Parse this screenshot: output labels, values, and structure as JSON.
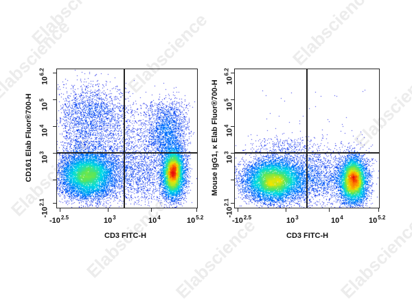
{
  "watermark": {
    "text": "Elabscience",
    "mark": "®"
  },
  "chart_data": [
    {
      "type": "scatter",
      "subtype": "flow-cytometry-density-dot-plot",
      "title": "",
      "xlabel": "CD3 FITC-H",
      "ylabel": "CD161 Elab Fluor®700-H",
      "x_ticks": [
        {
          "base": "-10",
          "exp": "2.5"
        },
        {
          "base": "10",
          "exp": "3"
        },
        {
          "base": "10",
          "exp": "4"
        },
        {
          "base": "10",
          "exp": "5.2"
        }
      ],
      "y_ticks": [
        {
          "base": "-10",
          "exp": "2.1"
        },
        {
          "base": "10",
          "exp": "3"
        },
        {
          "base": "10",
          "exp": "4"
        },
        {
          "base": "10",
          "exp": "5"
        },
        {
          "base": "10",
          "exp": "6.2"
        }
      ],
      "xlim": [
        "-10^2.5",
        "10^5.2"
      ],
      "ylim": [
        "-10^2.1",
        "10^6.2"
      ],
      "grid": false,
      "quadrant_gate": {
        "x": "~10^3.3",
        "y": "~10^3"
      },
      "populations": [
        {
          "name": "CD3- CD161-",
          "quadrant": "lower-left",
          "center": [
            "~10^2.7",
            "~10^2.4"
          ],
          "density": "high",
          "peak_color": "yellow-green"
        },
        {
          "name": "CD3+ CD161-",
          "quadrant": "lower-right",
          "center": [
            "~10^4.4",
            "~10^2.4"
          ],
          "density": "highest",
          "peak_color": "red"
        },
        {
          "name": "CD3+ CD161+",
          "quadrant": "upper-right",
          "center": [
            "~10^4.3",
            "~10^3.8"
          ],
          "density": "medium",
          "peak_color": "cyan"
        },
        {
          "name": "CD3- CD161+",
          "quadrant": "upper-left",
          "center": [
            "~10^2.7",
            "~10^3.8"
          ],
          "density": "low-medium",
          "peak_color": "blue"
        }
      ]
    },
    {
      "type": "scatter",
      "subtype": "flow-cytometry-density-dot-plot",
      "title": "",
      "xlabel": "CD3 FITC-H",
      "ylabel": "Mouse IgG1, κ Elab Fluor®700-H",
      "x_ticks": [
        {
          "base": "-10",
          "exp": "2.5"
        },
        {
          "base": "10",
          "exp": "3"
        },
        {
          "base": "10",
          "exp": "4"
        },
        {
          "base": "10",
          "exp": "5.2"
        }
      ],
      "y_ticks": [
        {
          "base": "-10",
          "exp": "2.1"
        },
        {
          "base": "10",
          "exp": "3"
        },
        {
          "base": "10",
          "exp": "4"
        },
        {
          "base": "10",
          "exp": "5"
        },
        {
          "base": "10",
          "exp": "6.2"
        }
      ],
      "xlim": [
        "-10^2.5",
        "10^5.2"
      ],
      "ylim": [
        "-10^2.1",
        "10^6.2"
      ],
      "grid": false,
      "quadrant_gate": {
        "x": "~10^3.3",
        "y": "~10^3"
      },
      "populations": [
        {
          "name": "CD3- isotype",
          "quadrant": "lower-left",
          "center": [
            "~10^2.7",
            "~10^2.4"
          ],
          "density": "high",
          "peak_color": "yellow-green"
        },
        {
          "name": "CD3+ isotype",
          "quadrant": "lower-right",
          "center": [
            "~10^4.4",
            "~10^2.4"
          ],
          "density": "highest",
          "peak_color": "red"
        },
        {
          "name": "background events",
          "quadrant": "upper",
          "density": "sparse",
          "peak_color": "blue"
        }
      ]
    }
  ],
  "plots": [
    {
      "ylabel": "CD161 Elab Fluor®700-H",
      "xlabel": "CD3 FITC-H",
      "xt": [
        [
          "-10",
          "2.5"
        ],
        [
          "10",
          "3"
        ],
        [
          "10",
          "4"
        ],
        [
          "10",
          "5.2"
        ]
      ],
      "yt": [
        [
          "-10",
          "2.1"
        ],
        [
          "10",
          "3"
        ],
        [
          "10",
          "4"
        ],
        [
          "10",
          "5"
        ],
        [
          "10",
          "6.2"
        ]
      ]
    },
    {
      "ylabel": "Mouse IgG1, κ Elab Fluor®700-H",
      "xlabel": "CD3 FITC-H",
      "xt": [
        [
          "-10",
          "2.5"
        ],
        [
          "10",
          "3"
        ],
        [
          "10",
          "4"
        ],
        [
          "10",
          "5.2"
        ]
      ],
      "yt": [
        [
          "-10",
          "2.1"
        ],
        [
          "10",
          "3"
        ],
        [
          "10",
          "4"
        ],
        [
          "10",
          "5"
        ],
        [
          "10",
          "6.2"
        ]
      ]
    }
  ]
}
